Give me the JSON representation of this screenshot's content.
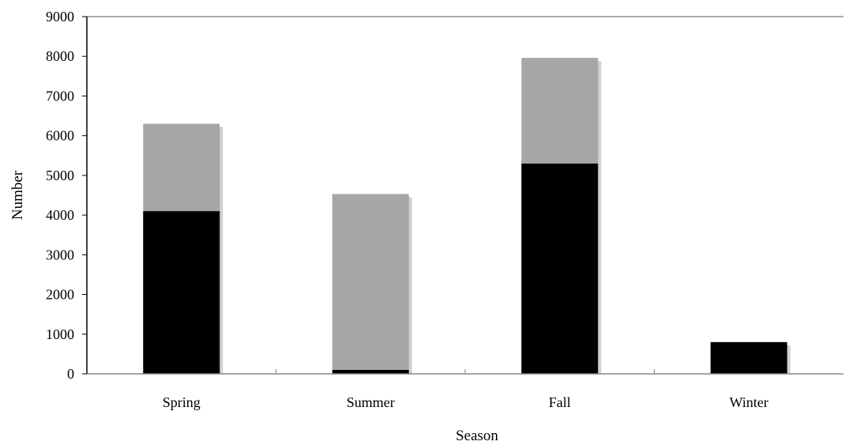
{
  "chart_data": {
    "type": "bar",
    "stacked": true,
    "categories": [
      "Spring",
      "Summer",
      "Fall",
      "Winter"
    ],
    "series": [
      {
        "values": [
          4100,
          100,
          5300,
          800
        ],
        "color": "#000000"
      },
      {
        "values": [
          2200,
          4430,
          2660,
          0
        ],
        "color": "#a6a6a6"
      }
    ],
    "bar_shadow_color": "#d0d0d0",
    "xlabel": "Season",
    "ylabel": "Number",
    "ylim": [
      0,
      9000
    ],
    "yticks": [
      0,
      1000,
      2000,
      3000,
      4000,
      5000,
      6000,
      7000,
      8000,
      9000
    ],
    "grid": false,
    "legend": "none"
  }
}
